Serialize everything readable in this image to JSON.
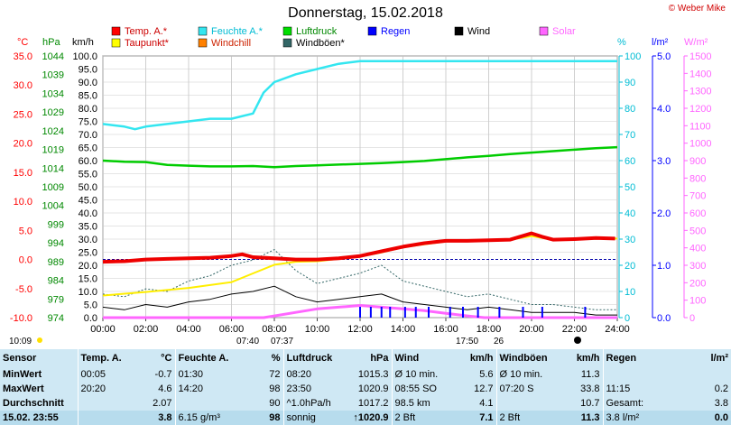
{
  "title": "Donnerstag, 15.02.2018",
  "copyright": "© Weber Mike",
  "legend": [
    {
      "label": "Temp. A.*",
      "color": "#ff0000"
    },
    {
      "label": "Feuchte A.*",
      "color": "#33e6f0"
    },
    {
      "label": "Luftdruck",
      "color": "#00dd00"
    },
    {
      "label": "Regen",
      "color": "#0000ff"
    },
    {
      "label": "Wind",
      "color": "#000000"
    },
    {
      "label": "Solar",
      "color": "#ff66ff"
    },
    {
      "label": "Taupunkt*",
      "color": "#ffff00"
    },
    {
      "label": "Windchill",
      "color": "#ff8000"
    },
    {
      "label": "Windböen*",
      "color": "#336666"
    }
  ],
  "axis_units": {
    "temp": "°C",
    "press": "hPa",
    "wind": "km/h",
    "hum": "%",
    "rain": "l/m²",
    "solar": "W/m²"
  },
  "sun_times": {
    "sunrise": "07:40",
    "sunrise2": "07:37",
    "sunset": "17:50",
    "sunset2": "26",
    "day_length": "10:09"
  },
  "chart_data": {
    "type": "line",
    "x_unit": "time of day",
    "x_ticks": [
      "00:00",
      "02:00",
      "04:00",
      "06:00",
      "08:00",
      "10:00",
      "12:00",
      "14:00",
      "16:00",
      "18:00",
      "20:00",
      "22:00",
      "24:00"
    ],
    "axes": {
      "temperature": {
        "unit": "°C",
        "range": [
          -10,
          35
        ],
        "ticks": [
          "35.0",
          "30.0",
          "25.0",
          "20.0",
          "15.0",
          "10.0",
          "5.0",
          "0.0",
          "-5.0",
          "-10.0"
        ]
      },
      "pressure": {
        "unit": "hPa",
        "range": [
          974,
          1046
        ],
        "ticks": [
          "1044",
          "1039",
          "1034",
          "1029",
          "1024",
          "1019",
          "1014",
          "1009",
          "1004",
          "999",
          "994",
          "989",
          "984",
          "979",
          "974"
        ]
      },
      "wind": {
        "unit": "km/h",
        "range": [
          0,
          100
        ],
        "ticks": [
          "100.0",
          "95.0",
          "90.0",
          "85.0",
          "80.0",
          "75.0",
          "70.0",
          "65.0",
          "60.0",
          "55.0",
          "50.0",
          "45.0",
          "40.0",
          "35.0",
          "30.0",
          "25.0",
          "20.0",
          "15.0",
          "10.0",
          "5.0",
          "0.0"
        ]
      },
      "humidity": {
        "unit": "%",
        "range": [
          0,
          100
        ],
        "ticks": [
          "100",
          "90",
          "80",
          "70",
          "60",
          "50",
          "40",
          "30",
          "20",
          "10",
          "0"
        ]
      },
      "rain": {
        "unit": "l/m²",
        "range": [
          0,
          5
        ],
        "ticks": [
          "5.0",
          "4.0",
          "3.0",
          "2.0",
          "1.0",
          "0.0"
        ]
      },
      "solar": {
        "unit": "W/m²",
        "range": [
          0,
          1500
        ],
        "ticks": [
          "1500",
          "1400",
          "1300",
          "1200",
          "1100",
          "1000",
          "900",
          "800",
          "700",
          "600",
          "500",
          "400",
          "300",
          "200",
          "100",
          "0"
        ]
      }
    },
    "series": [
      {
        "name": "Temp. A.*",
        "axis": "temperature",
        "x": [
          0,
          1,
          2,
          3,
          4,
          5,
          6,
          6.5,
          7,
          8,
          9,
          10,
          11,
          12,
          13,
          14,
          15,
          16,
          17,
          18,
          19,
          20,
          20.5,
          21,
          22,
          23,
          23.9
        ],
        "y": [
          -0.4,
          -0.3,
          0,
          0.1,
          0.2,
          0.3,
          0.6,
          0.9,
          0.4,
          0.2,
          0,
          0,
          0.2,
          0.6,
          1.4,
          2.2,
          2.8,
          3.2,
          3.2,
          3.3,
          3.4,
          4.5,
          3.9,
          3.4,
          3.5,
          3.7,
          3.6
        ]
      },
      {
        "name": "Taupunkt*",
        "axis": "temperature",
        "x": [
          0,
          2,
          4,
          6,
          7,
          8,
          9,
          10,
          11,
          12,
          13,
          14,
          15,
          16,
          17,
          18,
          19,
          20,
          21,
          22,
          23,
          24
        ],
        "y": [
          -6.2,
          -5.6,
          -4.9,
          -3.9,
          -2.4,
          -0.9,
          -0.4,
          -0.3,
          0.1,
          0.5,
          1.2,
          2.1,
          2.6,
          3.1,
          3.2,
          3.3,
          3.4,
          4,
          3.4,
          3.5,
          3.6,
          3.6
        ]
      },
      {
        "name": "Feuchte A.*",
        "axis": "humidity",
        "x": [
          0,
          1,
          1.5,
          2,
          3,
          4,
          5,
          6,
          7,
          7.5,
          8,
          9,
          10,
          11,
          12,
          13,
          14,
          15,
          16,
          17,
          18,
          19,
          20,
          21,
          22,
          23,
          24
        ],
        "y": [
          74,
          73,
          72,
          73,
          74,
          75,
          76,
          76,
          78,
          86,
          90,
          93,
          95,
          97,
          98,
          98,
          98,
          98,
          98,
          98,
          98,
          98,
          98,
          98,
          98,
          98,
          98
        ]
      },
      {
        "name": "Luftdruck",
        "axis": "pressure",
        "x": [
          0,
          1,
          2,
          3,
          4,
          5,
          6,
          7,
          8,
          9,
          10,
          11,
          12,
          13,
          14,
          15,
          16,
          17,
          18,
          19,
          20,
          21,
          22,
          23,
          24
        ],
        "y": [
          1017.2,
          1016.9,
          1016.8,
          1016,
          1015.8,
          1015.6,
          1015.6,
          1015.7,
          1015.4,
          1015.7,
          1015.9,
          1016.1,
          1016.3,
          1016.5,
          1016.8,
          1017.1,
          1017.6,
          1018.1,
          1018.5,
          1019,
          1019.4,
          1019.8,
          1020.2,
          1020.6,
          1020.9
        ]
      },
      {
        "name": "Wind",
        "axis": "wind",
        "x": [
          0,
          1,
          2,
          3,
          4,
          5,
          6,
          7,
          8,
          9,
          10,
          11,
          12,
          13,
          14,
          15,
          16,
          17,
          18,
          19,
          20,
          21,
          22,
          23,
          24
        ],
        "y": [
          4,
          3,
          5,
          4,
          6,
          7,
          9,
          10,
          12,
          8,
          6,
          7,
          8,
          9,
          6,
          5,
          4,
          3,
          4,
          3,
          2,
          2,
          2,
          1,
          1
        ]
      },
      {
        "name": "Windböen*",
        "axis": "wind",
        "x": [
          0,
          1,
          2,
          3,
          4,
          5,
          6,
          7,
          8,
          9,
          10,
          11,
          12,
          13,
          14,
          15,
          16,
          17,
          18,
          19,
          20,
          21,
          22,
          23,
          24
        ],
        "y": [
          9,
          8,
          11,
          10,
          14,
          16,
          20,
          22,
          26,
          18,
          13,
          15,
          17,
          20,
          14,
          12,
          10,
          8,
          9,
          7,
          5,
          5,
          4,
          3,
          3
        ]
      },
      {
        "name": "Solar",
        "axis": "solar",
        "x": [
          0,
          7.5,
          8,
          9,
          10,
          11,
          12,
          13,
          14,
          15,
          16,
          17,
          17.8,
          24
        ],
        "y": [
          0,
          0,
          10,
          30,
          50,
          60,
          70,
          60,
          50,
          40,
          25,
          10,
          0,
          0
        ]
      }
    ],
    "rain_marks_x": [
      12,
      12.5,
      13,
      13.4,
      14.1,
      14.6,
      15.2,
      16.2,
      16.8,
      17.5,
      18.5,
      19.6,
      20.5,
      22.5
    ]
  },
  "stats": {
    "header": [
      "Sensor",
      "Temp. A.",
      "°C",
      "Feuchte A.",
      "%",
      "Luftdruck",
      "hPa",
      "Wind",
      "km/h",
      "Windböen",
      "km/h",
      "Regen",
      "l/m²"
    ],
    "rows": [
      [
        "MinWert",
        "00:05",
        "-0.7",
        "01:30",
        "72",
        "08:20",
        "1015.3",
        "Ø 10 min.",
        "5.6",
        "Ø 10 min.",
        "11.3",
        "",
        ""
      ],
      [
        "MaxWert",
        "20:20",
        "4.6",
        "14:20",
        "98",
        "23:50",
        "1020.9",
        "08:55 SO",
        "12.7",
        "07:20 S",
        "33.8",
        "11:15",
        "0.2"
      ],
      [
        "Durchschnitt",
        "",
        "2.07",
        "",
        "90",
        "^1.0hPa/h",
        "1017.2",
        "98.5 km",
        "4.1",
        "",
        "10.7",
        "Gesamt:",
        "3.8"
      ],
      [
        "15.02. 23:55",
        "",
        "3.8",
        "6.15 g/m³",
        "98",
        "sonnig",
        "↑1020.9",
        "2 Bft",
        "7.1",
        "2 Bft",
        "11.3",
        "3.8 l/m²",
        "0.0"
      ]
    ]
  }
}
